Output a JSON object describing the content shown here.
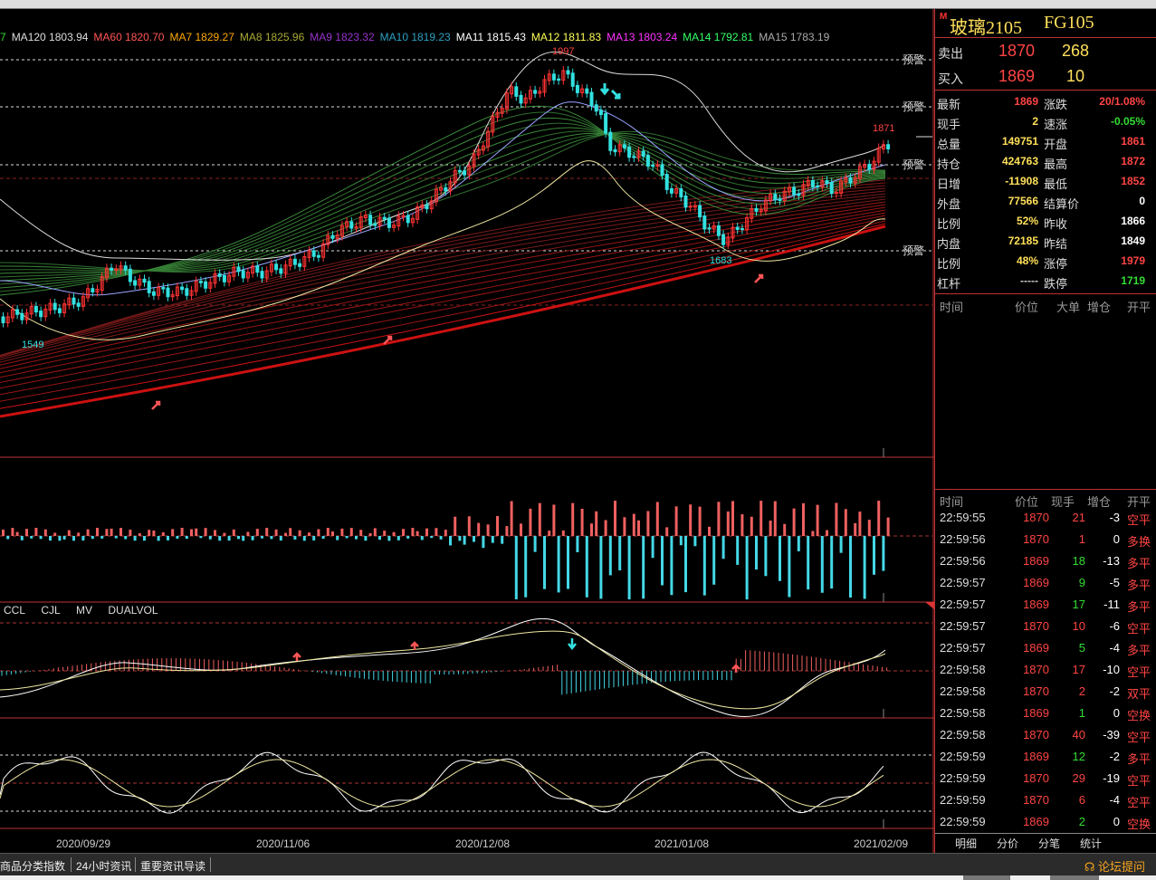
{
  "ma_legend": [
    {
      "label": "7",
      "color": "#33dd33"
    },
    {
      "label": "MA120 1803.94",
      "color": "#dddddd"
    },
    {
      "label": "MA60 1820.70",
      "color": "#ff5555"
    },
    {
      "label": "MA7 1829.27",
      "color": "#ffaa00"
    },
    {
      "label": "MA8 1825.96",
      "color": "#aaaa33"
    },
    {
      "label": "MA9 1823.32",
      "color": "#9933cc"
    },
    {
      "label": "MA10 1819.23",
      "color": "#2ba0c0"
    },
    {
      "label": "MA11 1815.43",
      "color": "#ffffff"
    },
    {
      "label": "MA12 1811.83",
      "color": "#ffff55"
    },
    {
      "label": "MA13 1803.24",
      "color": "#ff33ff"
    },
    {
      "label": "MA14 1792.81",
      "color": "#33ff66"
    },
    {
      "label": "MA15 1783.19",
      "color": "#aaaaaa"
    }
  ],
  "price_labels": {
    "high": "1997",
    "low_left": "1549",
    "low_mid": "1683",
    "last": "1871",
    "alert": "预警"
  },
  "sub_indicator_labels": [
    "CCL",
    "CJL",
    "MV",
    "DUALVOL"
  ],
  "dates": [
    "2020/09/29",
    "2020/11/06",
    "2020/12/08",
    "2021/01/08",
    "2021/02/09"
  ],
  "chart_data": {
    "type": "candlestick",
    "symbol": "玻璃2105",
    "high_marker": 1997,
    "low_markers": [
      1549,
      1683
    ],
    "last_price": 1871,
    "x_dates": [
      "2020/09/29",
      "2020/11/06",
      "2020/12/08",
      "2021/01/08",
      "2021/02/09"
    ]
  },
  "quote": {
    "m_badge": "M",
    "name": "玻璃2105",
    "code": "FG105",
    "sell": {
      "label": "卖出",
      "price": "1870",
      "vol": "268"
    },
    "buy": {
      "label": "买入",
      "price": "1869",
      "vol": "10"
    },
    "stats": [
      {
        "l1": "最新",
        "v1": "1869",
        "c1": "#ff4444",
        "l2": "涨跌",
        "v2": "20/1.08%",
        "c2": "#ff4444"
      },
      {
        "l1": "现手",
        "v1": "2",
        "c1": "#ffe05a",
        "l2": "速涨",
        "v2": "-0.05%",
        "c2": "#33dd33"
      },
      {
        "l1": "总量",
        "v1": "149751",
        "c1": "#ffe05a",
        "l2": "开盘",
        "v2": "1861",
        "c2": "#ff4444"
      },
      {
        "l1": "持仓",
        "v1": "424763",
        "c1": "#ffe05a",
        "l2": "最高",
        "v2": "1872",
        "c2": "#ff4444"
      },
      {
        "l1": "日增",
        "v1": "-11908",
        "c1": "#ffe05a",
        "l2": "最低",
        "v2": "1852",
        "c2": "#ff4444"
      },
      {
        "l1": "外盘",
        "v1": "77566",
        "c1": "#ffe05a",
        "l2": "结算价",
        "v2": "0",
        "c2": "#ffffff"
      },
      {
        "l1": "比例",
        "v1": "52%",
        "c1": "#ffe05a",
        "l2": "昨收",
        "v2": "1866",
        "c2": "#ffffff"
      },
      {
        "l1": "内盘",
        "v1": "72185",
        "c1": "#ffe05a",
        "l2": "昨结",
        "v2": "1849",
        "c2": "#ffffff"
      },
      {
        "l1": "比例",
        "v1": "48%",
        "c1": "#ffe05a",
        "l2": "涨停",
        "v2": "1979",
        "c2": "#ff4444"
      },
      {
        "l1": "杠杆",
        "v1": "-----",
        "c1": "#cccccc",
        "l2": "跌停",
        "v2": "1719",
        "c2": "#33dd33"
      }
    ],
    "tick_headers": [
      "时间",
      "价位",
      "大单",
      "增仓",
      "开平"
    ],
    "tick_headers2": [
      "时间",
      "价位",
      "现手",
      "增仓",
      "开平"
    ],
    "ticks": [
      {
        "time": "22:59:55",
        "price": "1870",
        "vol": "21",
        "oi": "-3",
        "type": "空平",
        "pc": "#ff4444",
        "vc": "#ff4444"
      },
      {
        "time": "22:59:56",
        "price": "1870",
        "vol": "1",
        "oi": "0",
        "type": "多换",
        "pc": "#ff4444",
        "vc": "#ff4444"
      },
      {
        "time": "22:59:56",
        "price": "1869",
        "vol": "18",
        "oi": "-13",
        "type": "多平",
        "pc": "#ff4444",
        "vc": "#33dd33"
      },
      {
        "time": "22:59:57",
        "price": "1869",
        "vol": "9",
        "oi": "-5",
        "type": "多平",
        "pc": "#ff4444",
        "vc": "#33dd33"
      },
      {
        "time": "22:59:57",
        "price": "1869",
        "vol": "17",
        "oi": "-11",
        "type": "多平",
        "pc": "#ff4444",
        "vc": "#33dd33"
      },
      {
        "time": "22:59:57",
        "price": "1870",
        "vol": "10",
        "oi": "-6",
        "type": "空平",
        "pc": "#ff4444",
        "vc": "#ff4444"
      },
      {
        "time": "22:59:57",
        "price": "1869",
        "vol": "5",
        "oi": "-4",
        "type": "多平",
        "pc": "#ff4444",
        "vc": "#33dd33"
      },
      {
        "time": "22:59:58",
        "price": "1870",
        "vol": "17",
        "oi": "-10",
        "type": "空平",
        "pc": "#ff4444",
        "vc": "#ff4444"
      },
      {
        "time": "22:59:58",
        "price": "1870",
        "vol": "2",
        "oi": "-2",
        "type": "双平",
        "pc": "#ff4444",
        "vc": "#ff4444"
      },
      {
        "time": "22:59:58",
        "price": "1869",
        "vol": "1",
        "oi": "0",
        "type": "空换",
        "pc": "#ff4444",
        "vc": "#33dd33"
      },
      {
        "time": "22:59:58",
        "price": "1870",
        "vol": "40",
        "oi": "-39",
        "type": "空平",
        "pc": "#ff4444",
        "vc": "#ff4444"
      },
      {
        "time": "22:59:59",
        "price": "1869",
        "vol": "12",
        "oi": "-2",
        "type": "多平",
        "pc": "#ff4444",
        "vc": "#33dd33"
      },
      {
        "time": "22:59:59",
        "price": "1870",
        "vol": "29",
        "oi": "-19",
        "type": "空平",
        "pc": "#ff4444",
        "vc": "#ff4444"
      },
      {
        "time": "22:59:59",
        "price": "1870",
        "vol": "6",
        "oi": "-4",
        "type": "空平",
        "pc": "#ff4444",
        "vc": "#ff4444"
      },
      {
        "time": "22:59:59",
        "price": "1869",
        "vol": "2",
        "oi": "0",
        "type": "空换",
        "pc": "#ff4444",
        "vc": "#33dd33"
      }
    ],
    "tabs": [
      "明细",
      "分价",
      "分笔",
      "统计"
    ]
  },
  "statusbar": {
    "items": [
      "商品分类指数",
      "24小时资讯",
      "重要资讯导读"
    ],
    "help": "论坛提问"
  }
}
